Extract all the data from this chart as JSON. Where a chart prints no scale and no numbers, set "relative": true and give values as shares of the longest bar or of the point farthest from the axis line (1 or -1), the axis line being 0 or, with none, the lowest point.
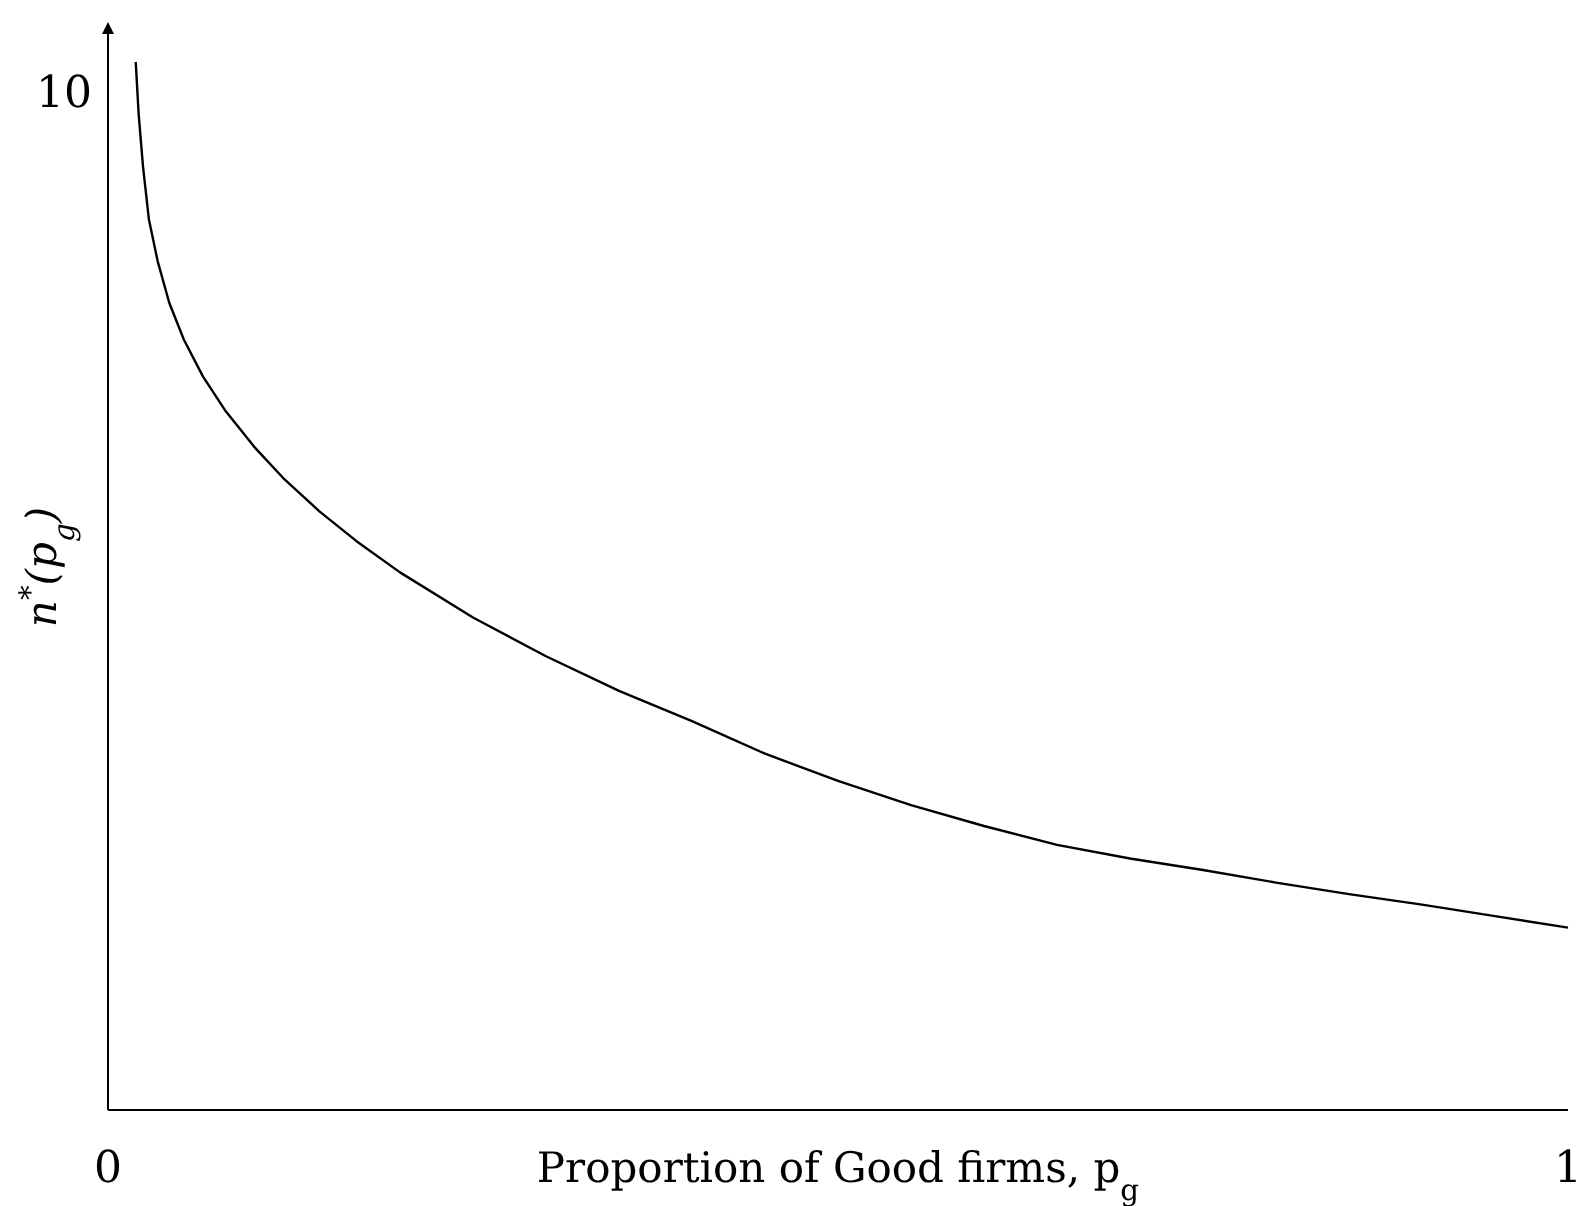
{
  "chart_data": {
    "type": "line",
    "xlabel": "Proportion of Good firms, p$_{g}$",
    "ylabel": "n$^{*}$(p$_{g}$)",
    "xlim": [
      0,
      1
    ],
    "xticks": [
      0,
      1
    ],
    "relative": true,
    "annotations": [
      "10"
    ],
    "grid": false,
    "line_style": "solid",
    "series": [
      {
        "color": "#000000",
        "x": [
          0.019,
          0.021,
          0.024,
          0.028,
          0.034,
          0.042,
          0.052,
          0.065,
          0.08,
          0.1,
          0.12,
          0.145,
          0.17,
          0.2,
          0.25,
          0.3,
          0.35,
          0.4,
          0.45,
          0.5,
          0.55,
          0.6,
          0.65,
          0.7,
          0.75,
          0.8,
          0.85,
          0.9,
          0.95,
          1.0
        ],
        "values": [
          1.0,
          0.95,
          0.9,
          0.85,
          0.81,
          0.77,
          0.735,
          0.7,
          0.668,
          0.633,
          0.603,
          0.571,
          0.543,
          0.513,
          0.47,
          0.433,
          0.4,
          0.371,
          0.34,
          0.314,
          0.291,
          0.271,
          0.253,
          0.24,
          0.229,
          0.217,
          0.206,
          0.196,
          0.185,
          0.174
        ]
      }
    ]
  }
}
